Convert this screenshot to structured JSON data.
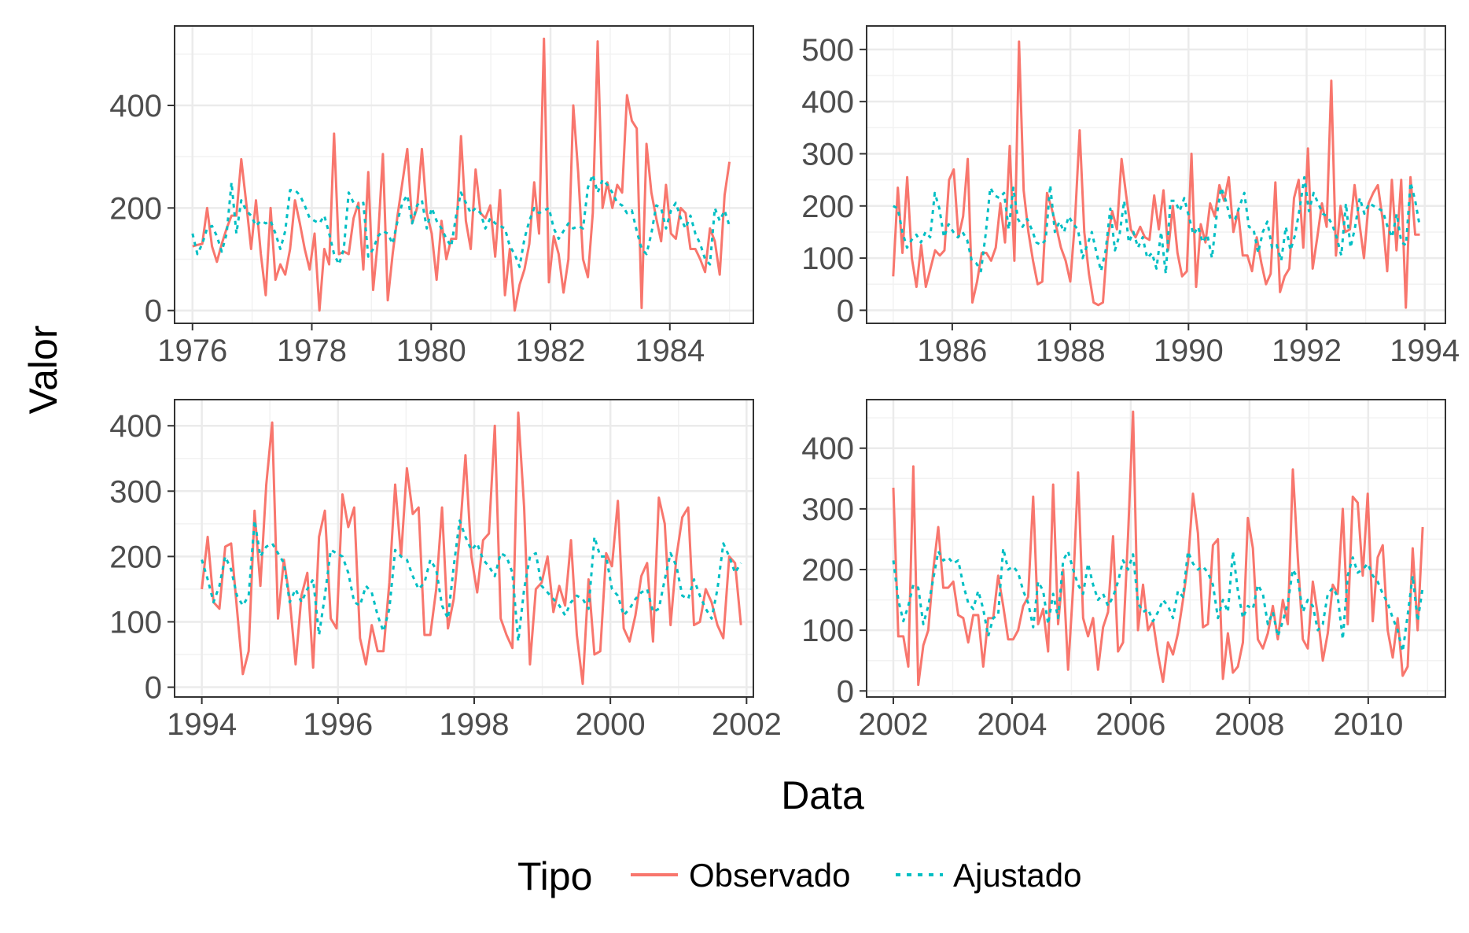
{
  "axes": {
    "xlabel": "Data",
    "ylabel": "Valor"
  },
  "legend": {
    "title": "Tipo",
    "placement": "bottom",
    "items": [
      {
        "label": "Observado",
        "color": "#F8766D",
        "dash": "solid"
      },
      {
        "label": "Ajustado",
        "color": "#00BFC4",
        "dash": "dotted"
      }
    ]
  },
  "chart_data": [
    {
      "type": "line",
      "x_range": [
        1976.0,
        1985.0
      ],
      "xlim": [
        1975.7,
        1985.4
      ],
      "x_ticks": [
        1976,
        1978,
        1980,
        1982,
        1984
      ],
      "ylim": [
        -25,
        555
      ],
      "y_ticks": [
        0,
        200,
        400
      ],
      "grid": true,
      "series": [
        {
          "name": "Observado",
          "color": "#F8766D",
          "values": [
            125,
            128,
            130,
            200,
            125,
            95,
            130,
            160,
            185,
            185,
            295,
            210,
            120,
            215,
            110,
            30,
            200,
            60,
            90,
            70,
            120,
            215,
            170,
            120,
            80,
            150,
            0,
            120,
            90,
            345,
            110,
            115,
            110,
            180,
            210,
            80,
            270,
            40,
            140,
            305,
            20,
            110,
            185,
            250,
            315,
            170,
            200,
            315,
            190,
            150,
            60,
            175,
            100,
            140,
            140,
            340,
            175,
            120,
            275,
            190,
            180,
            205,
            105,
            235,
            30,
            120,
            0,
            50,
            80,
            130,
            250,
            150,
            530,
            55,
            145,
            110,
            35,
            100,
            400,
            270,
            100,
            65,
            190,
            525,
            200,
            250,
            200,
            245,
            230,
            420,
            370,
            355,
            5,
            325,
            230,
            180,
            135,
            245,
            150,
            140,
            200,
            190,
            120,
            120,
            100,
            75,
            160,
            135,
            70,
            225,
            290
          ]
        },
        {
          "name": "Ajustado",
          "color": "#00BFC4",
          "values": [
            150,
            110,
            130,
            160,
            165,
            145,
            115,
            150,
            250,
            150,
            215,
            195,
            185,
            165,
            175,
            170,
            175,
            150,
            120,
            155,
            235,
            235,
            225,
            205,
            180,
            175,
            170,
            185,
            150,
            110,
            90,
            120,
            230,
            210,
            200,
            210,
            105,
            120,
            145,
            155,
            150,
            130,
            175,
            210,
            225,
            170,
            205,
            215,
            160,
            200,
            175,
            160,
            140,
            125,
            185,
            230,
            210,
            190,
            200,
            190,
            160,
            180,
            170,
            165,
            160,
            125,
            110,
            85,
            140,
            175,
            200,
            190,
            195,
            200,
            160,
            140,
            155,
            170,
            160,
            165,
            160,
            240,
            265,
            230,
            255,
            245,
            230,
            210,
            205,
            190,
            195,
            155,
            120,
            110,
            150,
            205,
            200,
            160,
            195,
            210,
            180,
            160,
            185,
            150,
            130,
            100,
            90,
            200,
            175,
            195,
            165
          ]
        }
      ]
    },
    {
      "type": "line",
      "x_range": [
        1985.0,
        1993.917
      ],
      "xlim": [
        1984.55,
        1994.35
      ],
      "x_ticks": [
        1986,
        1988,
        1990,
        1992,
        1994
      ],
      "ylim": [
        -25,
        545
      ],
      "y_ticks": [
        0,
        100,
        200,
        300,
        400,
        500
      ],
      "grid": true,
      "series": [
        {
          "name": "Observado",
          "color": "#F8766D",
          "values": [
            65,
            235,
            110,
            255,
            100,
            45,
            125,
            45,
            80,
            115,
            105,
            115,
            250,
            270,
            140,
            180,
            290,
            15,
            55,
            110,
            110,
            95,
            120,
            205,
            130,
            315,
            95,
            515,
            230,
            150,
            95,
            50,
            55,
            225,
            195,
            160,
            120,
            95,
            55,
            170,
            345,
            150,
            70,
            15,
            10,
            15,
            135,
            190,
            155,
            290,
            220,
            155,
            140,
            160,
            140,
            135,
            220,
            155,
            230,
            115,
            200,
            110,
            65,
            75,
            300,
            45,
            165,
            130,
            205,
            180,
            240,
            210,
            255,
            150,
            190,
            105,
            105,
            75,
            140,
            90,
            50,
            70,
            245,
            35,
            65,
            80,
            215,
            250,
            120,
            310,
            80,
            140,
            205,
            160,
            440,
            105,
            200,
            150,
            155,
            240,
            170,
            100,
            205,
            225,
            240,
            175,
            75,
            250,
            115,
            250,
            5,
            255,
            145,
            145
          ]
        },
        {
          "name": "Ajustado",
          "color": "#00BFC4",
          "values": [
            200,
            195,
            150,
            120,
            135,
            145,
            130,
            150,
            140,
            225,
            195,
            140,
            165,
            150,
            140,
            150,
            135,
            95,
            90,
            75,
            145,
            235,
            220,
            215,
            225,
            155,
            235,
            175,
            160,
            175,
            155,
            130,
            125,
            135,
            240,
            150,
            170,
            150,
            180,
            165,
            155,
            100,
            125,
            150,
            110,
            75,
            115,
            195,
            115,
            145,
            210,
            130,
            150,
            120,
            140,
            100,
            110,
            80,
            150,
            70,
            210,
            210,
            190,
            215,
            180,
            145,
            160,
            130,
            145,
            100,
            180,
            235,
            210,
            175,
            175,
            200,
            225,
            160,
            155,
            110,
            150,
            170,
            120,
            125,
            95,
            160,
            115,
            145,
            195,
            255,
            190,
            225,
            205,
            185,
            180,
            165,
            140,
            105,
            205,
            120,
            160,
            215,
            185,
            205,
            200,
            195,
            190,
            160,
            140,
            185,
            130,
            125,
            245,
            210,
            160
          ]
        }
      ]
    },
    {
      "type": "line",
      "x_range": [
        1994.0,
        2001.917
      ],
      "xlim": [
        1993.6,
        2002.1
      ],
      "x_ticks": [
        1994,
        1996,
        1998,
        2000,
        2002
      ],
      "ylim": [
        -15,
        440
      ],
      "y_ticks": [
        0,
        100,
        200,
        300,
        400
      ],
      "grid": true,
      "series": [
        {
          "name": "Observado",
          "color": "#F8766D",
          "values": [
            150,
            230,
            130,
            120,
            215,
            220,
            120,
            20,
            55,
            270,
            155,
            310,
            405,
            105,
            195,
            135,
            35,
            140,
            175,
            30,
            230,
            270,
            105,
            90,
            295,
            245,
            275,
            75,
            35,
            95,
            55,
            55,
            160,
            310,
            200,
            335,
            265,
            275,
            80,
            80,
            150,
            275,
            90,
            135,
            230,
            355,
            200,
            145,
            225,
            235,
            400,
            105,
            80,
            60,
            420,
            275,
            35,
            150,
            160,
            200,
            115,
            155,
            125,
            225,
            80,
            5,
            165,
            50,
            55,
            205,
            185,
            285,
            90,
            70,
            110,
            170,
            190,
            70,
            290,
            250,
            95,
            200,
            260,
            275,
            95,
            100,
            150,
            130,
            95,
            75,
            200,
            190,
            95
          ]
        },
        {
          "name": "Ajustado",
          "color": "#00BFC4",
          "values": [
            195,
            165,
            130,
            155,
            200,
            180,
            140,
            125,
            140,
            255,
            200,
            215,
            220,
            205,
            190,
            130,
            150,
            130,
            150,
            165,
            80,
            140,
            210,
            205,
            200,
            175,
            130,
            125,
            155,
            145,
            110,
            85,
            120,
            210,
            200,
            195,
            170,
            150,
            160,
            195,
            180,
            125,
            105,
            185,
            255,
            230,
            210,
            220,
            195,
            185,
            170,
            205,
            200,
            175,
            70,
            150,
            200,
            205,
            155,
            145,
            135,
            125,
            110,
            130,
            140,
            135,
            120,
            230,
            200,
            200,
            150,
            140,
            110,
            120,
            135,
            145,
            150,
            115,
            120,
            165,
            205,
            185,
            140,
            135,
            165,
            140,
            120,
            105,
            150,
            220,
            200,
            175,
            190
          ]
        }
      ]
    },
    {
      "type": "line",
      "x_range": [
        2002.0,
        2010.917
      ],
      "xlim": [
        2001.55,
        2011.3
      ],
      "x_ticks": [
        2002,
        2004,
        2006,
        2008,
        2010
      ],
      "ylim": [
        -10,
        480
      ],
      "y_ticks": [
        0,
        100,
        200,
        300,
        400
      ],
      "grid": true,
      "series": [
        {
          "name": "Observado",
          "color": "#F8766D",
          "values": [
            335,
            90,
            90,
            40,
            370,
            10,
            75,
            100,
            200,
            270,
            170,
            170,
            180,
            125,
            120,
            80,
            125,
            125,
            40,
            120,
            120,
            190,
            140,
            85,
            85,
            100,
            140,
            155,
            320,
            110,
            135,
            65,
            340,
            110,
            200,
            35,
            170,
            360,
            120,
            90,
            120,
            35,
            105,
            130,
            255,
            65,
            80,
            255,
            460,
            100,
            175,
            100,
            115,
            60,
            15,
            80,
            60,
            95,
            150,
            210,
            325,
            260,
            105,
            110,
            240,
            250,
            20,
            95,
            30,
            40,
            80,
            285,
            235,
            85,
            70,
            95,
            140,
            85,
            150,
            110,
            365,
            220,
            85,
            70,
            180,
            125,
            50,
            95,
            175,
            160,
            300,
            110,
            320,
            310,
            190,
            325,
            115,
            220,
            240,
            100,
            55,
            120,
            25,
            40,
            235,
            100,
            270
          ]
        },
        {
          "name": "Ajustado",
          "color": "#00BFC4",
          "values": [
            215,
            150,
            115,
            140,
            175,
            170,
            110,
            140,
            185,
            230,
            215,
            220,
            210,
            215,
            175,
            145,
            135,
            165,
            135,
            90,
            120,
            125,
            235,
            200,
            205,
            195,
            165,
            145,
            105,
            180,
            165,
            110,
            160,
            120,
            215,
            230,
            200,
            175,
            160,
            210,
            175,
            150,
            160,
            140,
            155,
            180,
            215,
            200,
            225,
            145,
            130,
            135,
            115,
            130,
            150,
            140,
            120,
            165,
            155,
            230,
            210,
            200,
            205,
            195,
            175,
            120,
            150,
            130,
            230,
            165,
            120,
            140,
            135,
            175,
            160,
            110,
            130,
            90,
            115,
            145,
            200,
            185,
            130,
            150,
            140,
            100,
            110,
            160,
            170,
            155,
            85,
            190,
            220,
            195,
            200,
            210,
            190,
            180,
            160,
            145,
            120,
            100,
            65,
            125,
            190,
            115,
            170
          ]
        }
      ]
    }
  ]
}
